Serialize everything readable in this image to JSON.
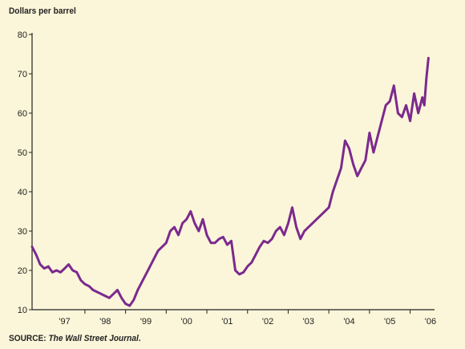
{
  "chart_data": {
    "type": "line",
    "ylabel": "Dollars per barrel",
    "ylim": [
      10,
      80
    ],
    "yticks": [
      "10",
      "20",
      "30",
      "40",
      "50",
      "60",
      "70",
      "80"
    ],
    "xlim": [
      1996.7,
      2006.6
    ],
    "xticks": [
      {
        "label": "'97",
        "x": 1997.5
      },
      {
        "label": "'98",
        "x": 1998.5
      },
      {
        "label": "'99",
        "x": 1999.5
      },
      {
        "label": "'00",
        "x": 2000.5
      },
      {
        "label": "'01",
        "x": 2001.5
      },
      {
        "label": "'02",
        "x": 2002.5
      },
      {
        "label": "'03",
        "x": 2003.5
      },
      {
        "label": "'04",
        "x": 2004.5
      },
      {
        "label": "'05",
        "x": 2005.5
      },
      {
        "label": "'06",
        "x": 2006.5
      }
    ],
    "grid": false,
    "series": [
      {
        "color": "#7b2a8e",
        "x": [
          1996.7,
          1996.8,
          1996.9,
          1997.0,
          1997.1,
          1997.2,
          1997.3,
          1997.4,
          1997.5,
          1997.6,
          1997.7,
          1997.8,
          1997.9,
          1998.0,
          1998.1,
          1998.2,
          1998.3,
          1998.4,
          1998.5,
          1998.6,
          1998.7,
          1998.8,
          1998.9,
          1999.0,
          1999.1,
          1999.2,
          1999.3,
          1999.4,
          1999.5,
          1999.6,
          1999.7,
          1999.8,
          1999.9,
          2000.0,
          2000.1,
          2000.2,
          2000.3,
          2000.4,
          2000.5,
          2000.6,
          2000.7,
          2000.8,
          2000.9,
          2001.0,
          2001.1,
          2001.2,
          2001.3,
          2001.4,
          2001.5,
          2001.6,
          2001.7,
          2001.8,
          2001.9,
          2002.0,
          2002.1,
          2002.2,
          2002.3,
          2002.4,
          2002.5,
          2002.6,
          2002.7,
          2002.8,
          2002.9,
          2003.0,
          2003.1,
          2003.2,
          2003.3,
          2003.4,
          2003.5,
          2003.6,
          2003.7,
          2003.8,
          2003.9,
          2004.0,
          2004.1,
          2004.2,
          2004.3,
          2004.4,
          2004.5,
          2004.6,
          2004.7,
          2004.8,
          2004.9,
          2005.0,
          2005.1,
          2005.2,
          2005.3,
          2005.4,
          2005.5,
          2005.6,
          2005.7,
          2005.8,
          2005.9,
          2006.0,
          2006.1,
          2006.2,
          2006.25,
          2006.3,
          2006.35,
          2006.4,
          2006.45
        ],
        "y": [
          26.0,
          24.0,
          21.5,
          20.5,
          21.0,
          19.5,
          20.0,
          19.5,
          20.5,
          21.5,
          20.0,
          19.5,
          17.5,
          16.5,
          16.0,
          15.0,
          14.5,
          14.0,
          13.5,
          13.0,
          14.0,
          15.0,
          13.0,
          11.5,
          11.0,
          12.5,
          15.0,
          17.0,
          19.0,
          21.0,
          23.0,
          25.0,
          26.0,
          27.0,
          30.0,
          31.0,
          29.0,
          32.0,
          33.0,
          35.0,
          32.0,
          30.0,
          33.0,
          29.0,
          27.0,
          27.0,
          28.0,
          28.5,
          26.5,
          27.5,
          20.0,
          19.0,
          19.5,
          21.0,
          22.0,
          24.0,
          26.0,
          27.5,
          27.0,
          28.0,
          30.0,
          31.0,
          29.0,
          32.0,
          36.0,
          31.0,
          28.0,
          30.0,
          31.0,
          32.0,
          33.0,
          34.0,
          35.0,
          36.0,
          40.0,
          43.0,
          46.0,
          53.0,
          51.0,
          47.0,
          44.0,
          46.0,
          48.0,
          55.0,
          50.0,
          54.0,
          58.0,
          62.0,
          63.0,
          67.0,
          60.0,
          59.0,
          62.0,
          58.0,
          65.0,
          60.0,
          62.0,
          64.0,
          62.0,
          69.0,
          74.0
        ]
      }
    ]
  },
  "labels": {
    "ylabel": "Dollars per barrel",
    "source_prefix": "SOURCE: ",
    "source_italic": "The Wall Street Journal",
    "source_suffix": "."
  }
}
